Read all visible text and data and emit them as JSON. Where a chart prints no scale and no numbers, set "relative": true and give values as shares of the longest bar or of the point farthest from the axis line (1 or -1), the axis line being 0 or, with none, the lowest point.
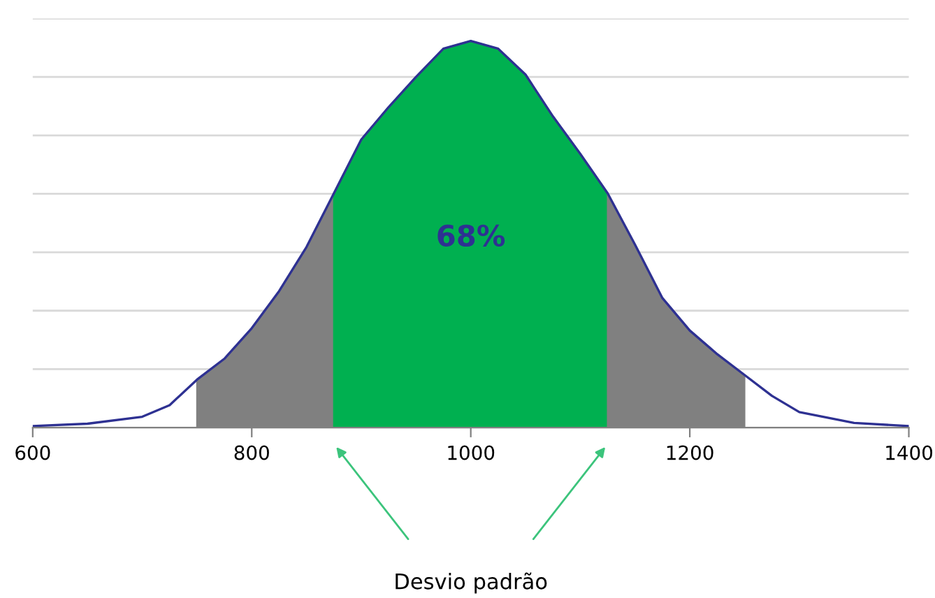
{
  "chart_data": {
    "type": "area",
    "relative": true,
    "xlim": [
      600,
      1400
    ],
    "xticks": [
      600,
      800,
      1000,
      1200,
      1400
    ],
    "grid": "y",
    "legend": false,
    "series": [
      {
        "color": "#808080",
        "x": [
          750,
          775,
          800,
          825,
          850,
          875
        ],
        "values": [
          0.124,
          0.178,
          0.257,
          0.353,
          0.467,
          0.606
        ]
      },
      {
        "color": "#00b050",
        "x": [
          875,
          900,
          925,
          950,
          975,
          1000,
          1025,
          1050,
          1075,
          1100,
          1125
        ],
        "values": [
          0.606,
          0.745,
          0.829,
          0.907,
          0.98,
          1,
          0.98,
          0.913,
          0.805,
          0.708,
          0.606
        ]
      },
      {
        "color": "#808080",
        "x": [
          1125,
          1150,
          1175,
          1200,
          1225,
          1250
        ],
        "values": [
          0.606,
          0.473,
          0.335,
          0.251,
          0.19,
          0.136
        ]
      },
      {
        "type": "line",
        "color": "#2e3192",
        "x": [
          600,
          650,
          700,
          725,
          750,
          775,
          800,
          825,
          850,
          875,
          900,
          925,
          950,
          975,
          1000,
          1025,
          1050,
          1075,
          1100,
          1125,
          1150,
          1175,
          1200,
          1225,
          1250,
          1275,
          1300,
          1350,
          1400
        ],
        "values": [
          0.004,
          0.01,
          0.028,
          0.058,
          0.124,
          0.178,
          0.257,
          0.353,
          0.467,
          0.606,
          0.745,
          0.829,
          0.907,
          0.98,
          1,
          0.98,
          0.913,
          0.805,
          0.708,
          0.606,
          0.473,
          0.335,
          0.251,
          0.19,
          0.136,
          0.082,
          0.04,
          0.012,
          0.004
        ]
      }
    ],
    "annotations": [
      "68%",
      "Desvio padrão"
    ]
  }
}
